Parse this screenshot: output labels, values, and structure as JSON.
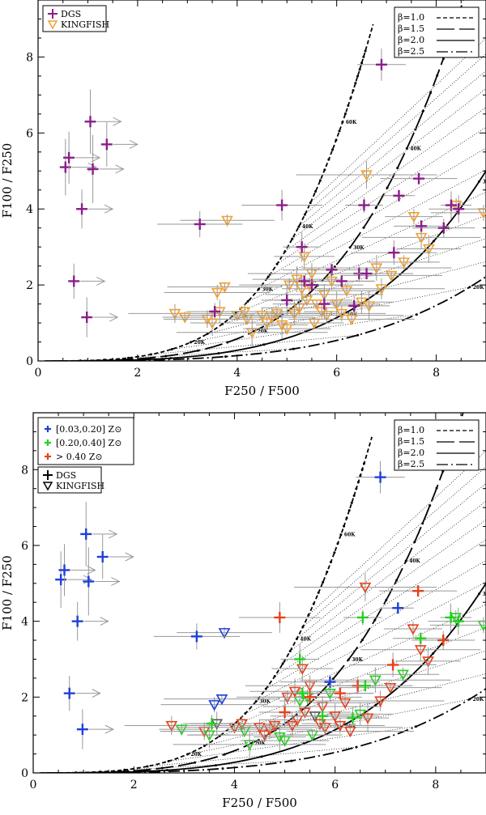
{
  "chart_data": [
    {
      "type": "scatter",
      "panel": "top",
      "xlabel": "F250 / F500",
      "ylabel": "F100 / F250",
      "xlim": [
        0,
        9
      ],
      "ylim": [
        0,
        9.5
      ],
      "xticks": [
        "0",
        "2",
        "4",
        "6",
        "8"
      ],
      "yticks": [
        "0",
        "2",
        "4",
        "6",
        "8"
      ],
      "legend_samples": [
        "DGS",
        "KINGFISH"
      ],
      "legend_beta": [
        "β=1.0",
        "β=1.5",
        "β=2.0",
        "β=2.5"
      ],
      "temperature_labels": [
        "20K",
        "30K",
        "40K",
        "60K",
        "20K",
        "30K",
        "40K",
        "60K",
        "20K",
        "30K",
        "20K",
        "30K",
        "40K"
      ],
      "dgs": [
        [
          0.55,
          5.1
        ],
        [
          0.62,
          5.35
        ],
        [
          0.88,
          4.0
        ],
        [
          1.05,
          6.3
        ],
        [
          1.1,
          5.05
        ],
        [
          1.38,
          5.7
        ],
        [
          0.72,
          2.1
        ],
        [
          0.98,
          1.15
        ],
        [
          3.25,
          3.6
        ],
        [
          4.9,
          4.1
        ],
        [
          5.3,
          3.0
        ],
        [
          5.5,
          2.0
        ],
        [
          5.35,
          2.1
        ],
        [
          5.75,
          1.5
        ],
        [
          5.9,
          2.4
        ],
        [
          6.1,
          2.1
        ],
        [
          6.35,
          1.45
        ],
        [
          6.45,
          2.3
        ],
        [
          6.55,
          4.1
        ],
        [
          6.6,
          2.3
        ],
        [
          7.25,
          4.35
        ],
        [
          7.65,
          4.8
        ],
        [
          7.7,
          3.55
        ],
        [
          8.15,
          3.5
        ],
        [
          8.3,
          4.1
        ],
        [
          8.45,
          4.0
        ],
        [
          6.9,
          7.8
        ],
        [
          7.15,
          2.85
        ],
        [
          3.55,
          1.3
        ],
        [
          5.0,
          1.6
        ]
      ],
      "kingfish": [
        [
          2.75,
          1.25
        ],
        [
          2.95,
          1.15
        ],
        [
          3.4,
          1.1
        ],
        [
          3.5,
          1.0
        ],
        [
          3.6,
          1.8
        ],
        [
          3.65,
          1.3
        ],
        [
          3.75,
          1.95
        ],
        [
          3.8,
          3.7
        ],
        [
          4.0,
          1.2
        ],
        [
          4.15,
          1.3
        ],
        [
          4.2,
          1.1
        ],
        [
          4.3,
          0.75
        ],
        [
          4.5,
          1.2
        ],
        [
          4.6,
          1.0
        ],
        [
          4.7,
          1.15
        ],
        [
          4.8,
          1.25
        ],
        [
          4.9,
          0.95
        ],
        [
          5.0,
          0.85
        ],
        [
          5.05,
          2.0
        ],
        [
          5.15,
          1.25
        ],
        [
          5.25,
          1.4
        ],
        [
          5.3,
          1.9
        ],
        [
          5.35,
          2.75
        ],
        [
          5.4,
          1.6
        ],
        [
          5.45,
          2.0
        ],
        [
          5.5,
          2.3
        ],
        [
          5.55,
          1.0
        ],
        [
          5.6,
          1.5
        ],
        [
          5.7,
          1.3
        ],
        [
          5.75,
          1.75
        ],
        [
          5.8,
          1.2
        ],
        [
          5.9,
          2.1
        ],
        [
          6.0,
          1.5
        ],
        [
          6.1,
          1.25
        ],
        [
          6.2,
          1.85
        ],
        [
          6.3,
          1.1
        ],
        [
          6.5,
          1.55
        ],
        [
          6.6,
          4.9
        ],
        [
          6.8,
          2.45
        ],
        [
          6.9,
          1.9
        ],
        [
          7.1,
          2.25
        ],
        [
          7.35,
          2.6
        ],
        [
          7.55,
          3.8
        ],
        [
          7.7,
          3.25
        ],
        [
          7.85,
          2.95
        ],
        [
          8.4,
          4.1
        ],
        [
          8.95,
          3.9
        ],
        [
          6.65,
          1.45
        ],
        [
          5.2,
          2.15
        ]
      ]
    },
    {
      "type": "scatter",
      "panel": "bottom",
      "xlabel": "F250 / F500",
      "ylabel": "F100 / F250",
      "xlim": [
        0,
        9
      ],
      "ylim": [
        0,
        9.5
      ],
      "xticks": [
        "0",
        "2",
        "4",
        "6",
        "8"
      ],
      "yticks": [
        "0",
        "2",
        "4",
        "6",
        "8"
      ],
      "legend_metallicity": [
        "[0.03,0.20] Z⊙",
        "[0.20,0.40] Z⊙",
        "> 0.40 Z⊙"
      ],
      "legend_samples": [
        "DGS",
        "KINGFISH"
      ],
      "legend_beta": [
        "β=1.0",
        "β=1.5",
        "β=2.0",
        "β=2.5"
      ],
      "temperature_labels": [
        "20K",
        "30K",
        "40K",
        "60K",
        "20K",
        "30K",
        "40K",
        "60K",
        "20K",
        "30K",
        "20K",
        "30K",
        "40K"
      ],
      "colors": {
        "low_z": "#1f3fd9",
        "mid_z": "#22d11e",
        "high_z": "#e8401a",
        "kingfish_other": "#555555"
      }
    }
  ]
}
